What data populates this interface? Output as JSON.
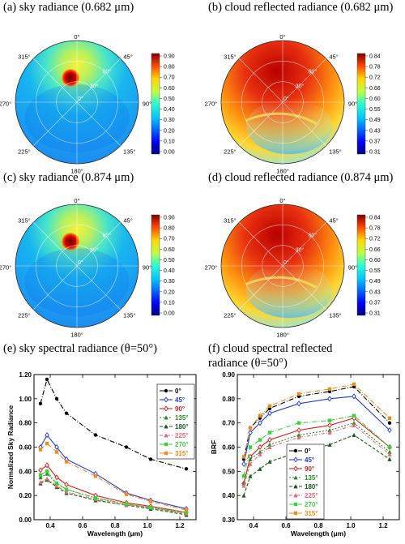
{
  "panels": {
    "a": {
      "title": "(a) sky radiance (0.682 μm)"
    },
    "b": {
      "title": "(b) cloud reflected radiance (0.682 μm)"
    },
    "c": {
      "title": "(c) sky radiance (0.874 μm)"
    },
    "d": {
      "title": "(d) cloud reflected radiance (0.874 μm)"
    },
    "e": {
      "title": "(e) sky spectral radiance (θ=50°)"
    },
    "f": {
      "title_line1": "(f) cloud spectral reflected",
      "title_line2": "radiance (θ=50°)"
    }
  },
  "polar_labels": {
    "azimuth": [
      "0°",
      "45°",
      "90°",
      "135°",
      "180°",
      "225°",
      "270°",
      "315°"
    ],
    "zenith": [
      "30°",
      "60°"
    ],
    "center": "0°"
  },
  "colorbars": {
    "sky": [
      "0.90",
      "0.80",
      "0.70",
      "0.60",
      "0.50",
      "0.40",
      "0.30",
      "0.20",
      "0.10",
      "0.00"
    ],
    "cloud": [
      "0.84",
      "0.78",
      "0.72",
      "0.66",
      "0.60",
      "0.55",
      "0.49",
      "0.43",
      "0.37",
      "0.31"
    ]
  },
  "colors": {
    "0°": "#000000",
    "45°": "#1f3bd6",
    "90°": "#e01b1b",
    "135°": "#2a8a2a",
    "180°": "#1a5a1a",
    "225°": "#e66a7a",
    "270°": "#3ad13a",
    "315°": "#f08c1a"
  },
  "chart_data": [
    {
      "type": "line",
      "panel": "e",
      "xlabel": "Wavelength (μm)",
      "ylabel": "Normalized Sky Radiance",
      "xlim": [
        0.3,
        1.3
      ],
      "ylim": [
        0.0,
        1.2
      ],
      "xticks": [
        "0.4",
        "0.6",
        "0.8",
        "1.0",
        "1.2"
      ],
      "yticks": [
        "0.00",
        "0.20",
        "0.40",
        "0.60",
        "0.80",
        "1.00",
        "1.20"
      ],
      "x": [
        0.34,
        0.38,
        0.44,
        0.5,
        0.68,
        0.87,
        1.02,
        1.24
      ],
      "series": [
        {
          "name": "0°",
          "values": [
            0.96,
            1.16,
            1.0,
            0.88,
            0.7,
            0.6,
            0.5,
            0.42
          ]
        },
        {
          "name": "45°",
          "values": [
            0.6,
            0.7,
            0.6,
            0.5,
            0.38,
            0.22,
            0.16,
            0.09
          ]
        },
        {
          "name": "90°",
          "values": [
            0.41,
            0.45,
            0.35,
            0.29,
            0.2,
            0.14,
            0.11,
            0.06
          ]
        },
        {
          "name": "135°",
          "values": [
            0.35,
            0.38,
            0.3,
            0.25,
            0.18,
            0.13,
            0.1,
            0.05
          ]
        },
        {
          "name": "180°",
          "values": [
            0.3,
            0.33,
            0.27,
            0.22,
            0.16,
            0.12,
            0.09,
            0.04
          ]
        },
        {
          "name": "225°",
          "values": [
            0.31,
            0.34,
            0.28,
            0.23,
            0.17,
            0.12,
            0.1,
            0.05
          ]
        },
        {
          "name": "270°",
          "values": [
            0.37,
            0.4,
            0.3,
            0.25,
            0.18,
            0.13,
            0.1,
            0.06
          ]
        },
        {
          "name": "315°",
          "values": [
            0.58,
            0.63,
            0.56,
            0.48,
            0.36,
            0.21,
            0.15,
            0.08
          ]
        }
      ],
      "legend": "top-right"
    },
    {
      "type": "line",
      "panel": "f",
      "xlabel": "Wavelength (μm)",
      "ylabel": "BRF",
      "xlim": [
        0.3,
        1.3
      ],
      "ylim": [
        0.3,
        0.9
      ],
      "xticks": [
        "0.4",
        "0.6",
        "0.8",
        "1.0",
        "1.2"
      ],
      "yticks": [
        "0.30",
        "0.40",
        "0.50",
        "0.60",
        "0.70",
        "0.80",
        "0.90"
      ],
      "x": [
        0.34,
        0.38,
        0.44,
        0.5,
        0.68,
        0.87,
        1.02,
        1.24
      ],
      "series": [
        {
          "name": "0°",
          "values": [
            0.55,
            0.68,
            0.72,
            0.76,
            0.81,
            0.83,
            0.85,
            0.7
          ]
        },
        {
          "name": "45°",
          "values": [
            0.53,
            0.66,
            0.7,
            0.74,
            0.78,
            0.8,
            0.81,
            0.67
          ]
        },
        {
          "name": "90°",
          "values": [
            0.45,
            0.56,
            0.6,
            0.63,
            0.67,
            0.69,
            0.72,
            0.6
          ]
        },
        {
          "name": "135°",
          "values": [
            0.45,
            0.55,
            0.58,
            0.61,
            0.65,
            0.67,
            0.7,
            0.58
          ]
        },
        {
          "name": "180°",
          "values": [
            0.4,
            0.48,
            0.51,
            0.54,
            0.58,
            0.61,
            0.65,
            0.55
          ]
        },
        {
          "name": "225°",
          "values": [
            0.44,
            0.53,
            0.57,
            0.6,
            0.64,
            0.66,
            0.69,
            0.57
          ]
        },
        {
          "name": "270°",
          "values": [
            0.48,
            0.6,
            0.63,
            0.66,
            0.7,
            0.71,
            0.73,
            0.6
          ]
        },
        {
          "name": "315°",
          "values": [
            0.56,
            0.68,
            0.73,
            0.77,
            0.82,
            0.84,
            0.86,
            0.72
          ]
        }
      ],
      "legend": "bottom-center"
    }
  ]
}
